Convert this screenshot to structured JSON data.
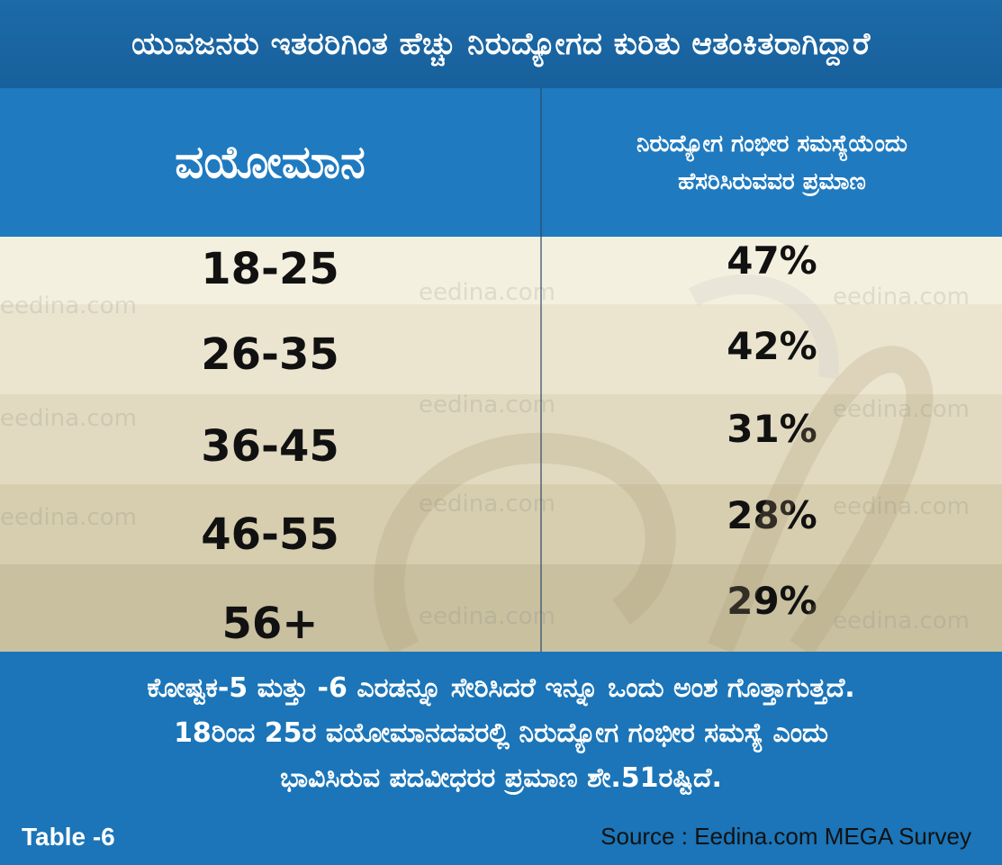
{
  "title": "ಯುವಜನರು ಇತರರಿಗಿಂತ ಹೆಚ್ಚು ನಿರುದ್ಯೋಗದ ಕುರಿತು ಆತಂಕಿತರಾಗಿದ್ದಾರೆ",
  "table": {
    "headers": {
      "age": "ವಯೋಮಾನ",
      "share_line1": "ನಿರುದ್ಯೋಗ ಗಂಭೀರ ಸಮಸ್ಯೆಯೆಂದು",
      "share_line2": "ಹೆಸರಿಸಿರುವವರ ಪ್ರಮಾಣ"
    },
    "rows": [
      {
        "age": "18-25",
        "share": "47%"
      },
      {
        "age": "26-35",
        "share": "42%"
      },
      {
        "age": "36-45",
        "share": "31%"
      },
      {
        "age": "46-55",
        "share": "28%"
      },
      {
        "age": "56+",
        "share": "29%"
      }
    ]
  },
  "note": {
    "line1": "ಕೋಷ್ಟಕ-5 ಮತ್ತು -6 ಎರಡನ್ನೂ ಸೇರಿಸಿದರೆ ಇನ್ನೂ ಒಂದು ಅಂಶ ಗೊತ್ತಾಗುತ್ತದೆ.",
    "line2": "18ರಿಂದ 25ರ ವಯೋಮಾನದವರಲ್ಲಿ ನಿರುದ್ಯೋಗ ಗಂಭೀರ ಸಮಸ್ಯೆ ಎಂದು",
    "line3": "ಭಾವಿಸಿರುವ ಪದವೀಧರರ ಪ್ರಮಾಣ ಶೇ.51ರಷ್ಟಿದೆ."
  },
  "table_label": "Table -6",
  "source": "Source : Eedina.com MEGA Survey",
  "watermark": "eedina.com",
  "colors": {
    "title_bg": "#1d6aa8",
    "header_bg": "#1f7ac0",
    "footer_bg": "#1b75b8",
    "row_bgs": [
      "#f4f0df",
      "#ebe5d0",
      "#e1dac0",
      "#d6ceaf",
      "#c9c0a0"
    ]
  }
}
